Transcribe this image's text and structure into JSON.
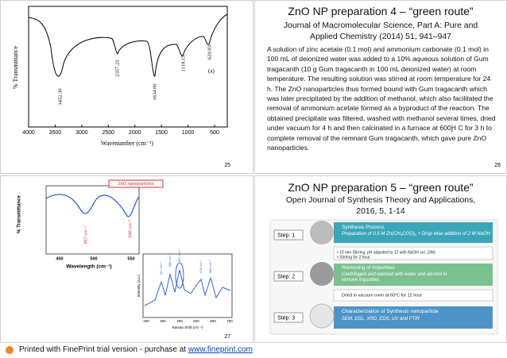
{
  "slides": [
    {
      "figure": {
        "y_label": "% Transmittance",
        "x_label": "Wavenumber (cm⁻¹)",
        "panel": "(a)",
        "x_ticks": [
          4000,
          3500,
          3000,
          2500,
          2000,
          1500,
          1000,
          500
        ],
        "peaks": [
          "3452.30",
          "2357.23",
          "1634.00",
          "1119.15",
          "620.93"
        ]
      },
      "page": "25"
    },
    {
      "title": "ZnO NP preparation 4 – “green route”",
      "journal": [
        "Journal of Macromolecular Science, Part A: Pure and",
        "Applied Chemistry (2014) 51, 941–947"
      ],
      "body": "A solution of zinc acetate (0.1 mol) and ammonium carbonate (0.1 mol) in 100 mL of deionized water was added to a 10% aqueous solution of Gum tragacanth (10 g Gum tragacanth in 100 mL deionized water) at room temperature. The resulting solution was stirred at room temperature for 24 h. The ZnO nanoparticles thus formed bound with Gum tragacanth which was later precipitated by the addition of methanol, which also facilitated the removal of ammonium acetate formed as a byproduct of the reaction. The obtained precipitate was filtered, washed with methanol several times, dried under vacuum for 4 h and then calcinated in a furnace at 600Ԩ C for 3 h to complete removal of the remnant Gum tragacanth, which gave pure ZnO nanoparticles.",
      "page": "26"
    },
    {
      "figure": {
        "legend": "ZnO nanoparticles",
        "y_label": "% Transmittance",
        "x_label": "Wavelength (cm⁻¹)",
        "x_ticks": [
          450,
          500,
          550
        ],
        "peaks": [
          "457 cm⁻¹",
          "540 cm⁻¹"
        ],
        "inset": {
          "y_label": "Intensity (a.u.)",
          "x_label": "Raman Shift (cm⁻¹)",
          "x_ticks": [
            200,
            300,
            400,
            500,
            600,
            700
          ],
          "peaks": [
            "327 cm⁻¹",
            "386 cm⁻¹",
            "437 cm⁻¹",
            "574 cm⁻¹",
            "660 cm⁻¹"
          ]
        }
      },
      "page": "27"
    },
    {
      "title": "ZnO NP preparation 5 – “green route”",
      "journal": [
        "Open Journal of Synthesis Theory and Applications,",
        "2016, 5, 1-14"
      ],
      "flow": {
        "steps": [
          {
            "label": "Step: 1",
            "heading": "Synthesis Process",
            "detail": "Preparation of 0.5 M Zn(CH₃COO)₂ + Drop wise addition of 2 M NaOH"
          },
          {
            "label": "Step: 2",
            "heading": "Removing of Impurities",
            "detail": "Centrifuged and washed with water and alcohol to remove impurities"
          },
          {
            "label": "Step: 3",
            "heading": "Characterization of Synthesis nanoparticle",
            "detail": "SEM, DSL, XRD, EDS, UV and FTIR"
          }
        ],
        "notes": [
          "• 10 min Stirring, pH adjusted to 12 with NaOH sol. (2M)",
          "• Stirring for 2 hour",
          "Dried in vacuum oven at 60°C for 12 hour"
        ]
      }
    }
  ],
  "footer": {
    "text": "Printed with FinePrint trial version - purchase at ",
    "link": "www.fineprint.com"
  }
}
